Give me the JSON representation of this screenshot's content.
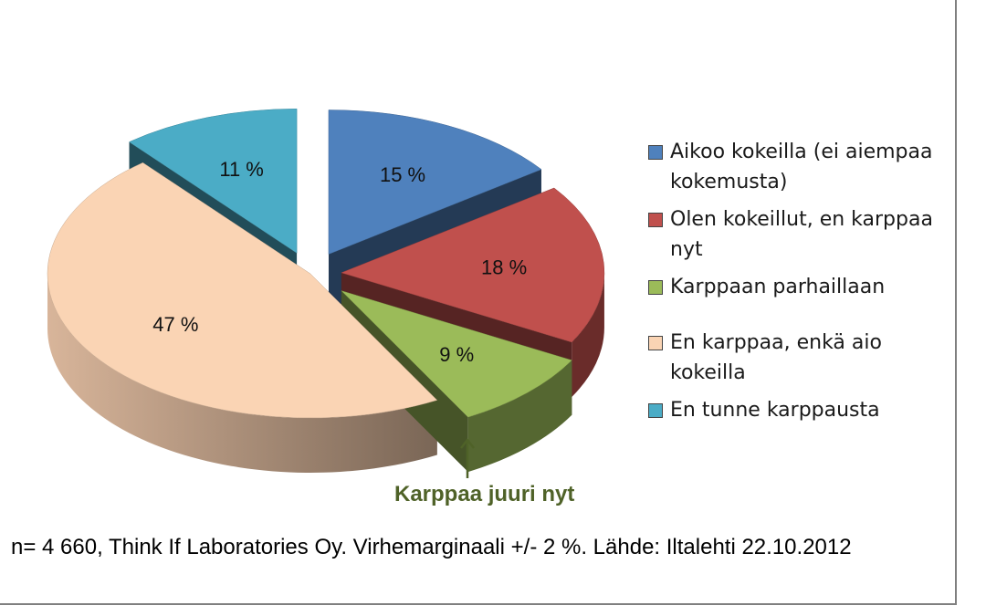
{
  "chart_data": {
    "type": "pie",
    "title": "",
    "slices": [
      {
        "label": "Aikoo kokeilla (ei aiempaa kokemusta)",
        "value": 15,
        "display": "15 %",
        "color": "#4f81bd"
      },
      {
        "label": "Olen kokeillut, en karppaa nyt",
        "value": 18,
        "display": "18 %",
        "color": "#c0504d"
      },
      {
        "label": "Karppaan parhaillaan",
        "value": 9,
        "display": "9 %",
        "color": "#9bbb59"
      },
      {
        "label": "En karppaa, enkä aio kokeilla",
        "value": 47,
        "display": "47 %",
        "color": "#fad4b4"
      },
      {
        "label": "En tunne karppausta",
        "value": 11,
        "display": "11 %",
        "color": "#4bacc6"
      }
    ],
    "legend_position": "right",
    "exploded": true,
    "three_d": true
  },
  "annotation": {
    "text": "Karppaa juuri nyt",
    "color": "#4f6228"
  },
  "footnote": "n= 4 660, Think If Laboratories Oy. Virhemarginaali +/- 2 %. Lähde: Iltalehti  22.10.2012"
}
